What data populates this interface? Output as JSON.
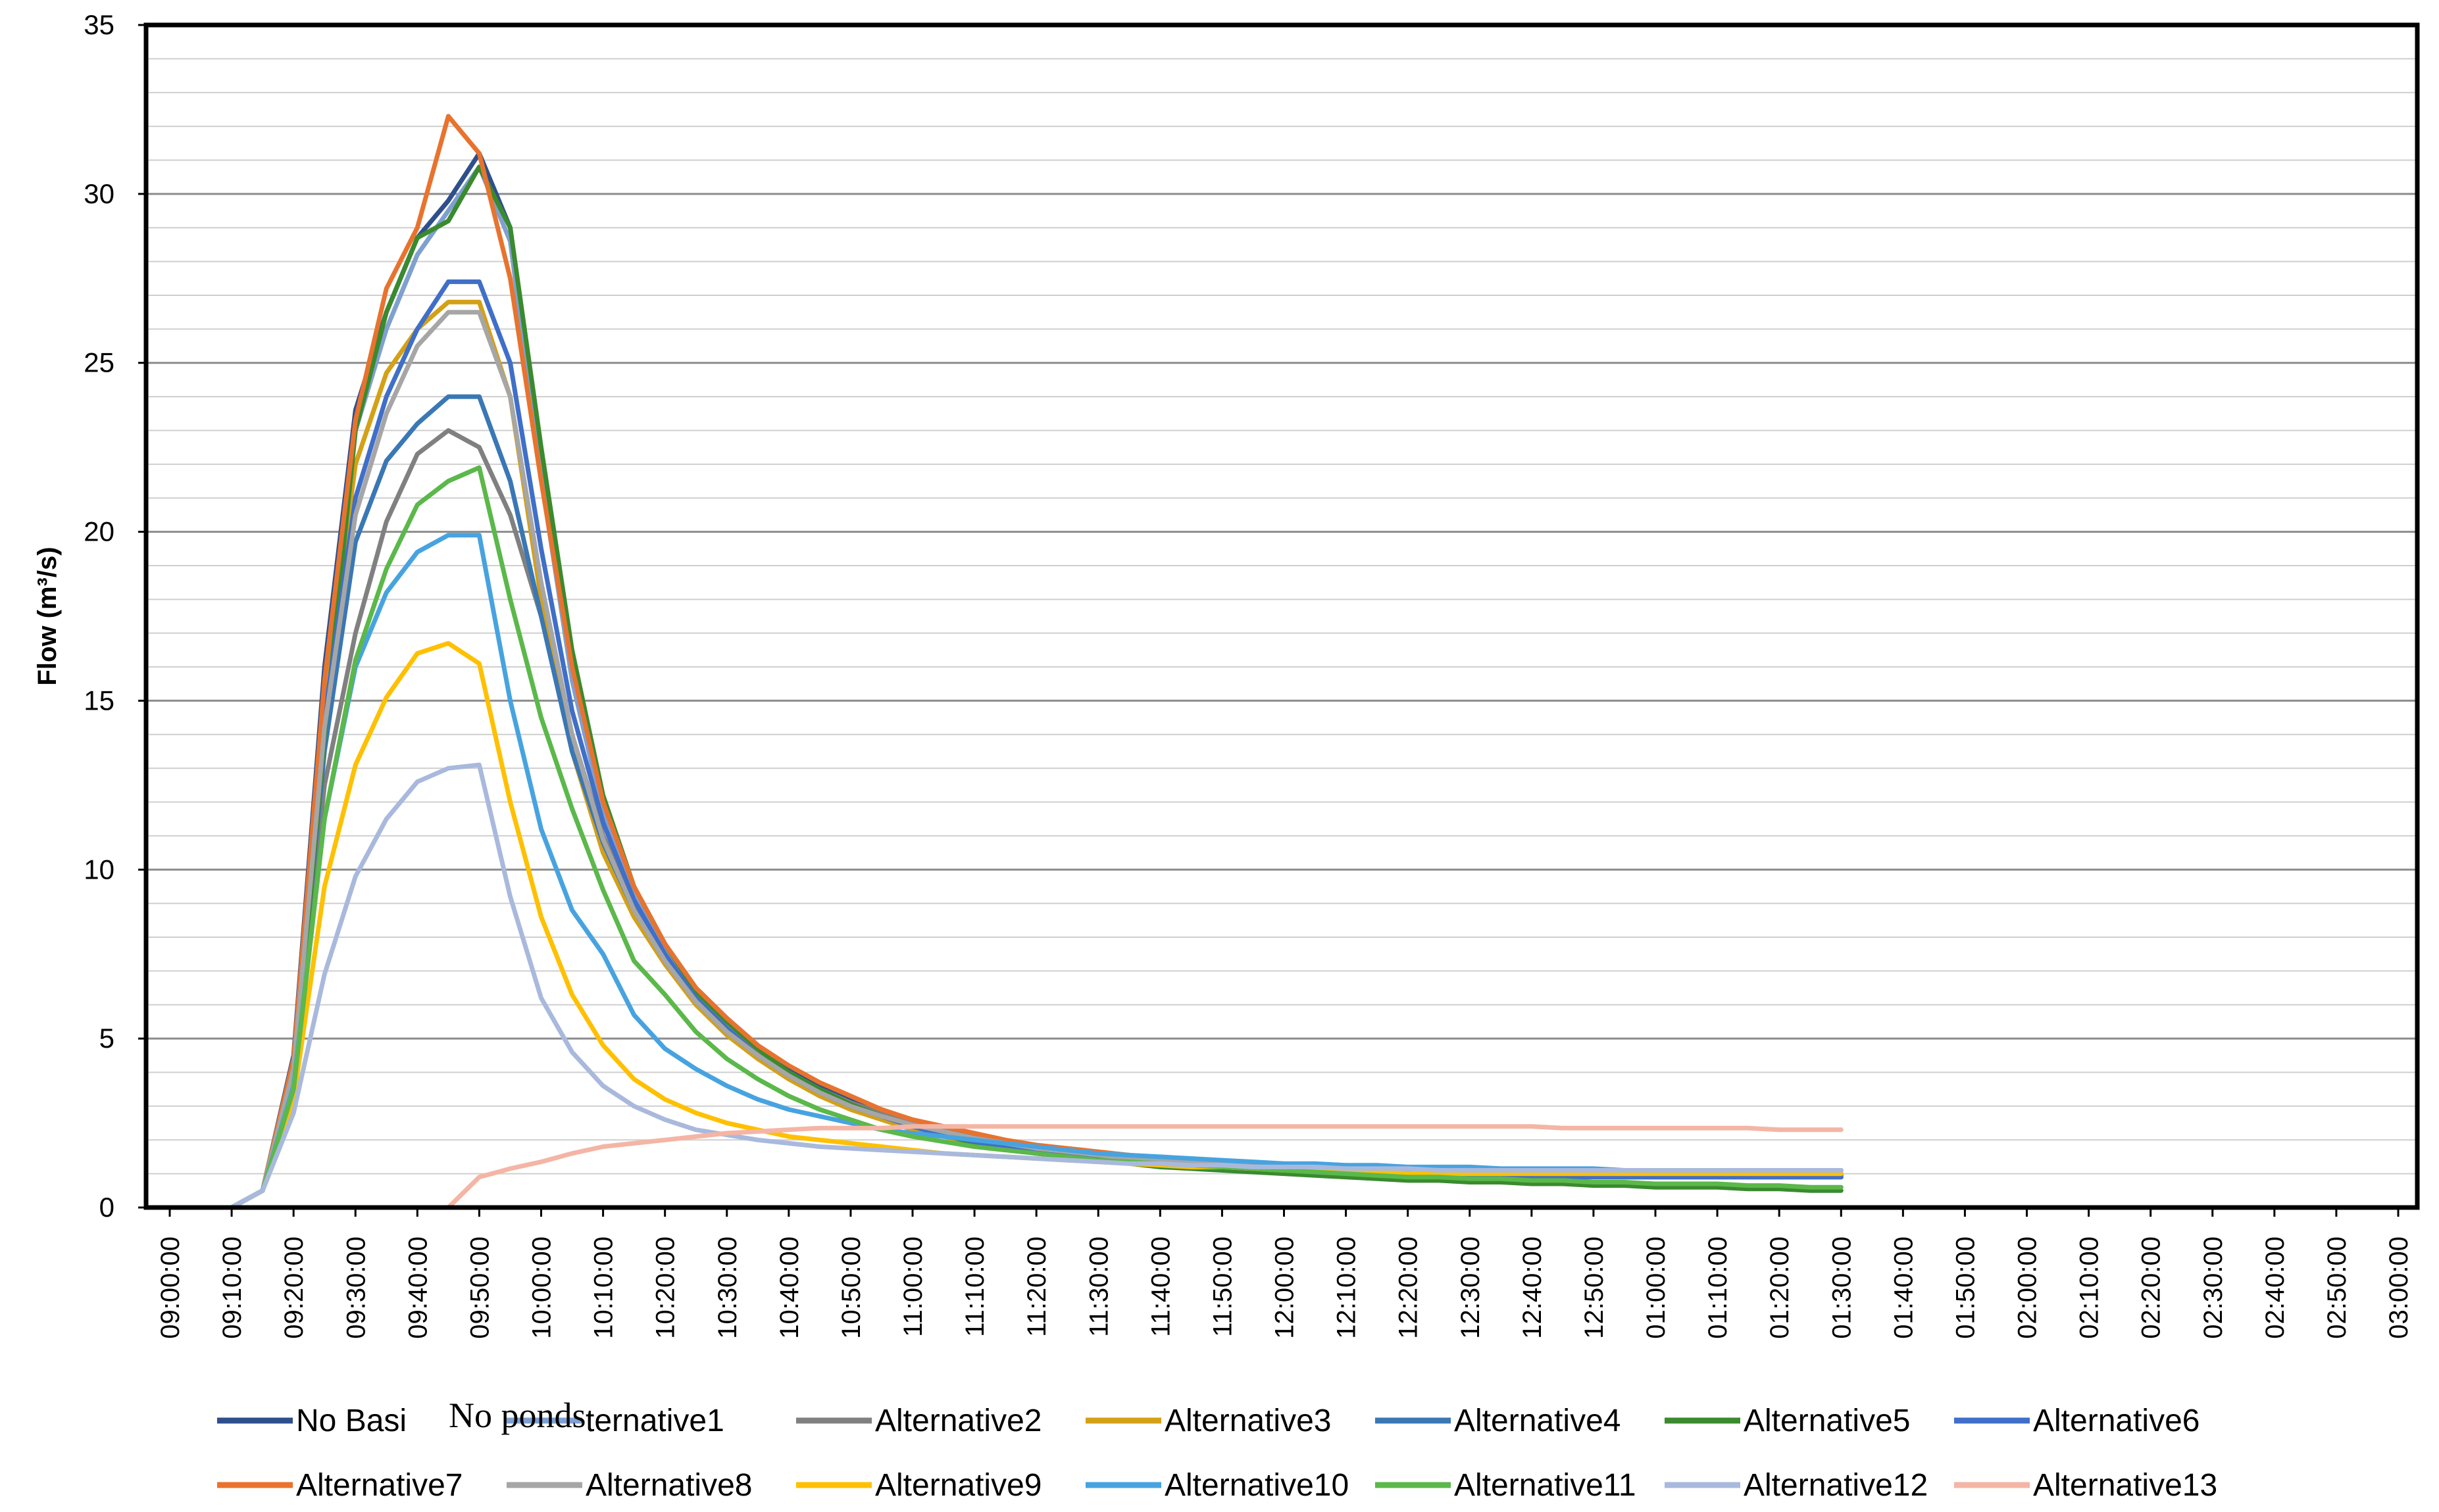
{
  "chart_data": {
    "type": "line",
    "title": "",
    "xlabel": "",
    "ylabel": "Flow (m³/s)",
    "ylim": [
      0,
      35
    ],
    "yticks": [
      "0",
      "5",
      "10",
      "15",
      "20",
      "25",
      "30",
      "35"
    ],
    "grid": true,
    "legend_position": "bottom",
    "x_tick_labels": [
      "09:00:00",
      "09:10:00",
      "09:20:00",
      "09:30:00",
      "09:40:00",
      "09:50:00",
      "10:00:00",
      "10:10:00",
      "10:20:00",
      "10:30:00",
      "10:40:00",
      "10:50:00",
      "11:00:00",
      "11:10:00",
      "11:20:00",
      "11:30:00",
      "11:40:00",
      "11:50:00",
      "12:00:00",
      "12:10:00",
      "12:20:00",
      "12:30:00",
      "12:40:00",
      "12:50:00",
      "01:00:00",
      "01:10:00",
      "01:20:00",
      "01:30:00",
      "01:40:00",
      "01:50:00",
      "02:00:00",
      "02:10:00",
      "02:20:00",
      "02:30:00",
      "02:40:00",
      "02:50:00",
      "03:00:00"
    ],
    "x_step_minutes": 5,
    "legend_overlay_text": "No ponds",
    "series": [
      {
        "name": "No Basi",
        "legend_label": "No Basi",
        "color": "#2E4F8C",
        "values": [
          0,
          0,
          0,
          0.5,
          4.5,
          16,
          23.6,
          26.5,
          28.7,
          29.8,
          31.2,
          29,
          22,
          16,
          12,
          9.5,
          7.8,
          6.5,
          5.6,
          4.8,
          4.1,
          3.6,
          3.2,
          2.8,
          2.5,
          2.3,
          2.1,
          1.9,
          1.7,
          1.6,
          1.5,
          1.4,
          1.3,
          1.25,
          1.2,
          1.15,
          1.1,
          1.05,
          1.0,
          1.0,
          0.95,
          0.95,
          0.9,
          0.9,
          0.9,
          0.9,
          0.9,
          0.9,
          0.9,
          0.9,
          0.9,
          0.9,
          0.9,
          0.9,
          0.9
        ]
      },
      {
        "name": "Alternative1",
        "legend_label": "ternative1",
        "color": "#7FA0D0",
        "values": [
          0,
          0,
          0,
          0.5,
          4.2,
          15,
          23.0,
          26.0,
          28.2,
          29.5,
          30.8,
          28.6,
          21.6,
          15.6,
          11.7,
          9.2,
          7.6,
          6.3,
          5.4,
          4.6,
          4.0,
          3.5,
          3.1,
          2.7,
          2.4,
          2.2,
          2.0,
          1.8,
          1.7,
          1.55,
          1.45,
          1.35,
          1.25,
          1.2,
          1.15,
          1.1,
          1.05,
          1.0,
          1.0,
          0.95,
          0.95,
          0.9,
          0.9,
          0.9,
          0.9,
          0.9,
          0.9,
          0.9,
          0.9,
          0.9,
          0.9,
          0.9,
          0.9,
          0.9,
          0.9
        ]
      },
      {
        "name": "Alternative2",
        "legend_label": "Alternative2",
        "color": "#808080",
        "values": [
          0,
          0,
          0,
          0.5,
          3.8,
          12.5,
          17,
          20.3,
          22.3,
          23.0,
          22.5,
          20.5,
          17.5,
          14,
          11,
          9,
          7.4,
          6.2,
          5.3,
          4.6,
          4.0,
          3.5,
          3.1,
          2.8,
          2.5,
          2.3,
          2.1,
          1.95,
          1.8,
          1.7,
          1.6,
          1.5,
          1.45,
          1.4,
          1.35,
          1.3,
          1.25,
          1.2,
          1.2,
          1.15,
          1.1,
          1.1,
          1.1,
          1.05,
          1.05,
          1.0,
          1.0,
          1.0,
          1.0,
          1.0,
          1.0,
          1.0,
          1.0,
          1.0,
          1.0
        ]
      },
      {
        "name": "Alternative3",
        "legend_label": "Alternative3",
        "color": "#D4A017",
        "values": [
          0,
          0,
          0,
          0.5,
          4.3,
          15,
          22,
          24.7,
          26.0,
          26.8,
          26.8,
          24,
          18,
          13.5,
          10.5,
          8.6,
          7.2,
          6.0,
          5.1,
          4.4,
          3.8,
          3.3,
          2.9,
          2.6,
          2.3,
          2.1,
          1.9,
          1.75,
          1.6,
          1.5,
          1.4,
          1.35,
          1.3,
          1.25,
          1.2,
          1.15,
          1.1,
          1.1,
          1.05,
          1.05,
          1.0,
          1.0,
          1.0,
          1.0,
          1.0,
          1.0,
          1.0,
          1.0,
          1.0,
          1.0,
          1.0,
          1.0,
          1.0,
          1.0,
          1.0
        ]
      },
      {
        "name": "Alternative4",
        "legend_label": "Alternative4",
        "color": "#3A77B5",
        "values": [
          0,
          0,
          0,
          0.5,
          4.0,
          13.5,
          19.7,
          22.1,
          23.2,
          24.0,
          24.0,
          21.5,
          17.5,
          13.5,
          10.8,
          8.8,
          7.3,
          6.1,
          5.2,
          4.5,
          3.9,
          3.4,
          3.0,
          2.7,
          2.4,
          2.2,
          2.0,
          1.85,
          1.7,
          1.6,
          1.5,
          1.4,
          1.35,
          1.3,
          1.25,
          1.2,
          1.15,
          1.1,
          1.1,
          1.05,
          1.0,
          1.0,
          1.0,
          1.0,
          0.95,
          0.95,
          0.95,
          0.95,
          0.95,
          0.95,
          0.95,
          0.95,
          0.95,
          0.95,
          0.95
        ]
      },
      {
        "name": "Alternative5",
        "legend_label": "Alternative5",
        "color": "#3A8A2E",
        "values": [
          0,
          0,
          0,
          0.5,
          3.5,
          14,
          23.0,
          26.5,
          28.7,
          29.2,
          30.8,
          29,
          22.5,
          16.5,
          12.2,
          9.5,
          7.8,
          6.4,
          5.5,
          4.7,
          4.0,
          3.5,
          3.05,
          2.7,
          2.4,
          2.15,
          1.9,
          1.75,
          1.6,
          1.5,
          1.4,
          1.3,
          1.2,
          1.15,
          1.1,
          1.05,
          1.0,
          0.95,
          0.9,
          0.85,
          0.8,
          0.8,
          0.75,
          0.75,
          0.7,
          0.7,
          0.65,
          0.65,
          0.6,
          0.6,
          0.6,
          0.55,
          0.55,
          0.5,
          0.5
        ]
      },
      {
        "name": "Alternative6",
        "legend_label": "Alternative6",
        "color": "#3F6FC8",
        "values": [
          0,
          0,
          0,
          0.5,
          4.2,
          14.5,
          21.0,
          24.0,
          26.0,
          27.4,
          27.4,
          25,
          19.5,
          14.7,
          11.4,
          9.1,
          7.5,
          6.2,
          5.3,
          4.5,
          3.9,
          3.4,
          3.0,
          2.7,
          2.4,
          2.15,
          1.95,
          1.8,
          1.65,
          1.55,
          1.45,
          1.35,
          1.3,
          1.25,
          1.2,
          1.15,
          1.1,
          1.05,
          1.0,
          1.0,
          0.95,
          0.95,
          0.9,
          0.9,
          0.9,
          0.9,
          0.9,
          0.9,
          0.9,
          0.9,
          0.9,
          0.9,
          0.9,
          0.9,
          0.9
        ]
      },
      {
        "name": "Alternative7",
        "legend_label": "Alternative7",
        "color": "#E8732E",
        "values": [
          0,
          0,
          0,
          0.5,
          4.4,
          15.6,
          23.3,
          27.2,
          29.0,
          32.3,
          31.2,
          27.5,
          21.5,
          16,
          12,
          9.5,
          7.8,
          6.5,
          5.6,
          4.8,
          4.2,
          3.7,
          3.3,
          2.9,
          2.6,
          2.4,
          2.2,
          2.0,
          1.85,
          1.75,
          1.65,
          1.55,
          1.45,
          1.4,
          1.35,
          1.3,
          1.25,
          1.2,
          1.15,
          1.1,
          1.1,
          1.05,
          1.05,
          1.0,
          1.0,
          1.0,
          1.0,
          1.0,
          1.0,
          1.0,
          1.0,
          1.0,
          1.0,
          1.0,
          1.0
        ]
      },
      {
        "name": "Alternative8",
        "legend_label": "Alternative8",
        "color": "#A6A6A6",
        "values": [
          0,
          0,
          0,
          0.5,
          4.1,
          14.2,
          20.5,
          23.5,
          25.5,
          26.5,
          26.5,
          24,
          18.5,
          14,
          10.9,
          8.8,
          7.3,
          6.1,
          5.2,
          4.5,
          3.9,
          3.4,
          3.0,
          2.7,
          2.45,
          2.25,
          2.05,
          1.9,
          1.75,
          1.65,
          1.55,
          1.45,
          1.4,
          1.35,
          1.3,
          1.25,
          1.2,
          1.2,
          1.15,
          1.15,
          1.1,
          1.1,
          1.1,
          1.1,
          1.1,
          1.1,
          1.1,
          1.1,
          1.1,
          1.1,
          1.1,
          1.1,
          1.1,
          1.1,
          1.1
        ]
      },
      {
        "name": "Alternative9",
        "legend_label": "Alternative9",
        "color": "#FFC000",
        "values": [
          0,
          0,
          0,
          0.5,
          3.2,
          9.5,
          13.1,
          15.1,
          16.4,
          16.7,
          16.1,
          12,
          8.6,
          6.3,
          4.8,
          3.8,
          3.2,
          2.8,
          2.5,
          2.3,
          2.1,
          2.0,
          1.9,
          1.8,
          1.7,
          1.6,
          1.55,
          1.5,
          1.45,
          1.4,
          1.35,
          1.3,
          1.25,
          1.2,
          1.2,
          1.15,
          1.1,
          1.1,
          1.05,
          1.05,
          1.0,
          1.0,
          1.0,
          1.0,
          1.0,
          1.0,
          1.0,
          1.0,
          1.0,
          1.0,
          1.0,
          1.0,
          1.0,
          1.0,
          1.0
        ]
      },
      {
        "name": "Alternative10",
        "legend_label": "Alternative10",
        "color": "#47A3E0",
        "values": [
          0,
          0,
          0,
          0.5,
          3.6,
          11.5,
          16.0,
          18.2,
          19.4,
          19.9,
          19.9,
          15.0,
          11.2,
          8.8,
          7.5,
          5.7,
          4.7,
          4.1,
          3.6,
          3.2,
          2.9,
          2.7,
          2.5,
          2.3,
          2.2,
          2.1,
          2.0,
          1.9,
          1.8,
          1.7,
          1.6,
          1.55,
          1.5,
          1.45,
          1.4,
          1.35,
          1.3,
          1.3,
          1.25,
          1.25,
          1.2,
          1.2,
          1.2,
          1.15,
          1.15,
          1.15,
          1.15,
          1.1,
          1.1,
          1.1,
          1.1,
          1.1,
          1.1,
          1.1,
          1.1
        ]
      },
      {
        "name": "Alternative11",
        "legend_label": "Alternative11",
        "color": "#5BB84A",
        "values": [
          0,
          0,
          0,
          0.5,
          3.5,
          11.5,
          16.2,
          18.9,
          20.8,
          21.5,
          21.9,
          18,
          14.5,
          11.8,
          9.4,
          7.3,
          6.3,
          5.2,
          4.4,
          3.8,
          3.3,
          2.9,
          2.6,
          2.3,
          2.1,
          1.95,
          1.8,
          1.7,
          1.6,
          1.5,
          1.4,
          1.35,
          1.3,
          1.25,
          1.2,
          1.15,
          1.1,
          1.05,
          1.0,
          0.95,
          0.9,
          0.9,
          0.85,
          0.85,
          0.8,
          0.8,
          0.75,
          0.75,
          0.7,
          0.7,
          0.7,
          0.65,
          0.65,
          0.6,
          0.6
        ]
      },
      {
        "name": "Alternative12",
        "legend_label": "Alternative12",
        "color": "#A9B9DD",
        "values": [
          0,
          0,
          0,
          0.5,
          2.8,
          6.9,
          9.8,
          11.5,
          12.6,
          13.0,
          13.1,
          9.2,
          6.2,
          4.6,
          3.6,
          3.0,
          2.6,
          2.3,
          2.15,
          2.0,
          1.9,
          1.8,
          1.75,
          1.7,
          1.65,
          1.6,
          1.55,
          1.5,
          1.45,
          1.4,
          1.35,
          1.3,
          1.3,
          1.25,
          1.25,
          1.2,
          1.2,
          1.2,
          1.15,
          1.15,
          1.15,
          1.1,
          1.1,
          1.1,
          1.1,
          1.1,
          1.1,
          1.1,
          1.1,
          1.1,
          1.1,
          1.1,
          1.1,
          1.1,
          1.1
        ]
      },
      {
        "name": "Alternative13",
        "legend_label": "Alternative13",
        "color": "#F4B5A5",
        "values": [
          0,
          0,
          0,
          0,
          0,
          0,
          0,
          0,
          0,
          0,
          0.9,
          1.15,
          1.35,
          1.6,
          1.8,
          1.9,
          2.0,
          2.1,
          2.2,
          2.25,
          2.3,
          2.35,
          2.35,
          2.35,
          2.4,
          2.4,
          2.4,
          2.4,
          2.4,
          2.4,
          2.4,
          2.4,
          2.4,
          2.4,
          2.4,
          2.4,
          2.4,
          2.4,
          2.4,
          2.4,
          2.4,
          2.4,
          2.4,
          2.4,
          2.4,
          2.35,
          2.35,
          2.35,
          2.35,
          2.35,
          2.35,
          2.35,
          2.3,
          2.3,
          2.3
        ]
      }
    ]
  }
}
